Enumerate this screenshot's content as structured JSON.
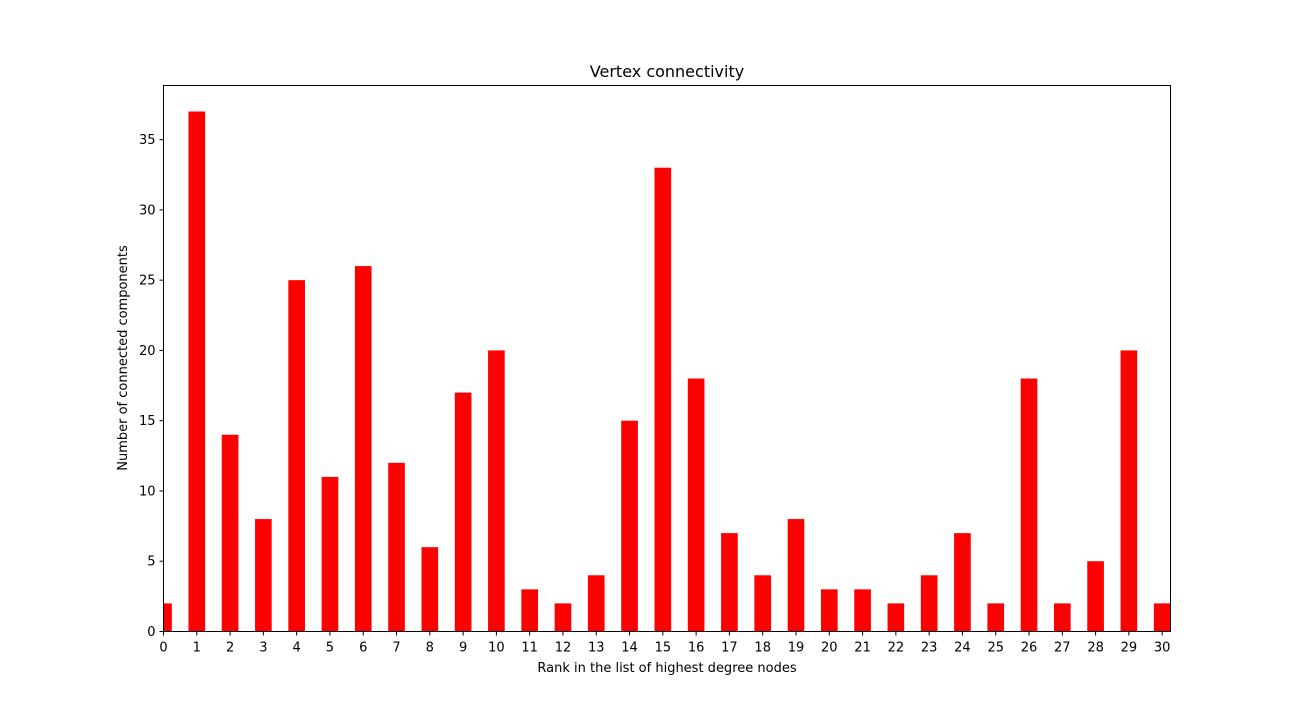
{
  "chart_data": {
    "type": "bar",
    "title": "Vertex connectivity",
    "xlabel": "Rank in the list of highest degree nodes",
    "ylabel": "Number of connected components",
    "categories": [
      "0",
      "1",
      "2",
      "3",
      "4",
      "5",
      "6",
      "7",
      "8",
      "9",
      "10",
      "11",
      "12",
      "13",
      "14",
      "15",
      "16",
      "17",
      "18",
      "19",
      "20",
      "21",
      "22",
      "23",
      "24",
      "25",
      "26",
      "27",
      "28",
      "29",
      "30"
    ],
    "values": [
      2,
      37,
      14,
      8,
      25,
      11,
      26,
      12,
      6,
      17,
      20,
      3,
      2,
      4,
      15,
      33,
      18,
      7,
      4,
      8,
      3,
      3,
      2,
      4,
      7,
      2,
      18,
      2,
      5,
      20,
      2
    ],
    "xlim": [
      0,
      30.25
    ],
    "ylim": [
      0,
      38.85
    ],
    "yticks": [
      0,
      5,
      10,
      15,
      20,
      25,
      30,
      35
    ],
    "bar_color": "#ff0000",
    "grid": false,
    "legend": "none"
  }
}
